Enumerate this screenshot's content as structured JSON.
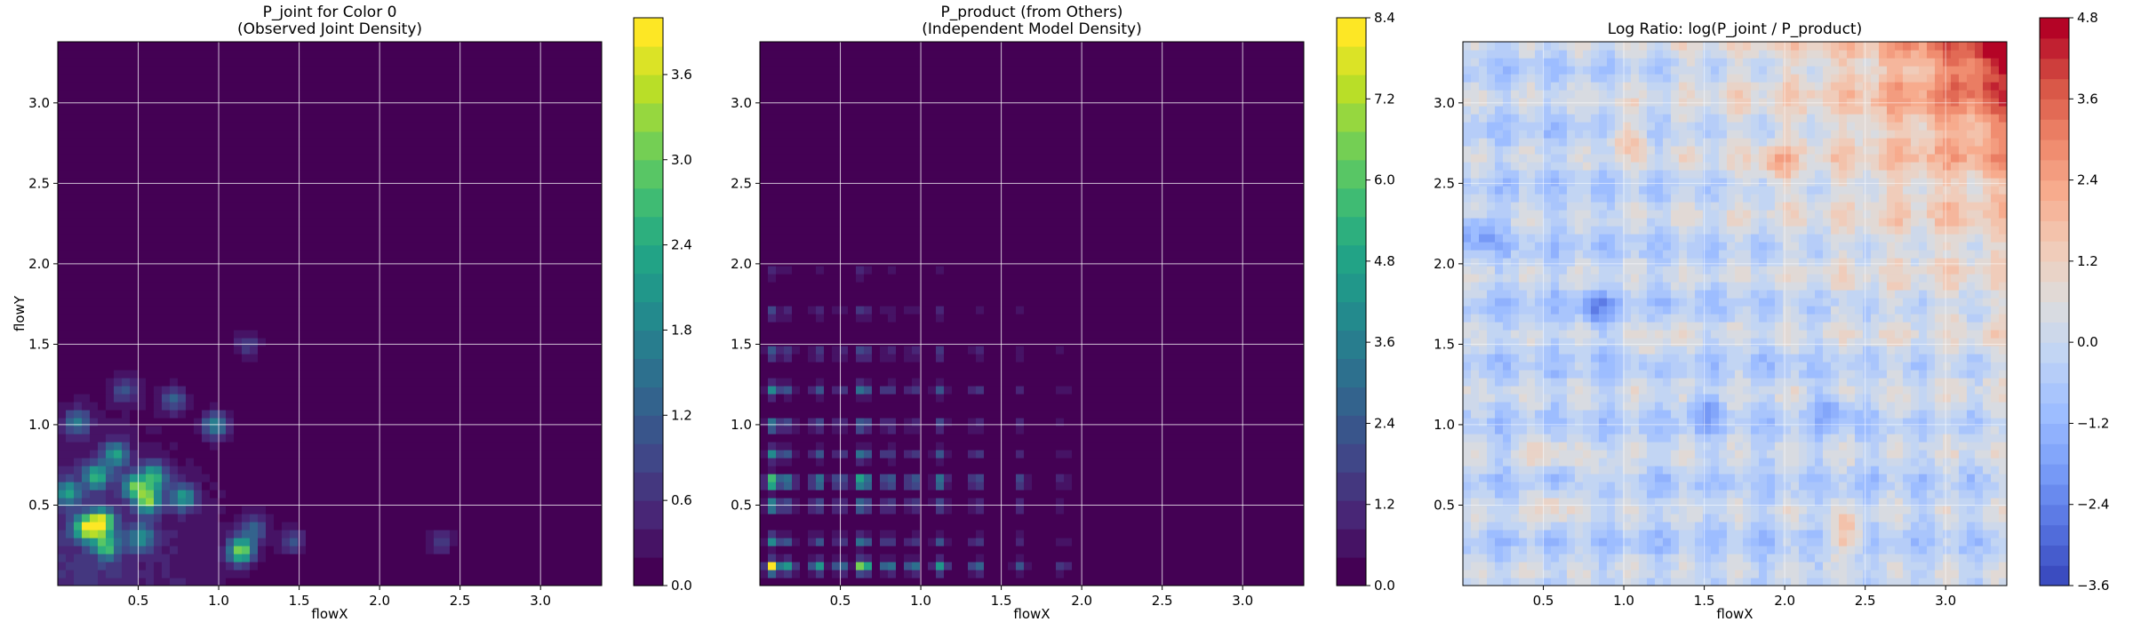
{
  "figure": {
    "colors": {
      "viridis": [
        "#440154",
        "#482475",
        "#414487",
        "#355f8d",
        "#2a788e",
        "#21918c",
        "#22a884",
        "#44bf70",
        "#7ad151",
        "#bddf26",
        "#fde725"
      ],
      "coolwarm": [
        "#3b4cc0",
        "#5977e3",
        "#7b9ff9",
        "#9ebeff",
        "#c0d4f5",
        "#dddcdc",
        "#f2cbb7",
        "#f7ac8e",
        "#ee8468",
        "#d65244",
        "#b40426"
      ],
      "grid": "#ffffff"
    }
  },
  "chart_data": [
    {
      "type": "heatmap",
      "title": [
        "P_joint for Color 0",
        "(Observed Joint Density)"
      ],
      "xlabel": "flowX",
      "ylabel": "flowY",
      "xlim": [
        0.0,
        3.38
      ],
      "ylim": [
        0.0,
        3.38
      ],
      "xticks": [
        "0.5",
        "1.0",
        "1.5",
        "2.0",
        "2.5",
        "3.0"
      ],
      "yticks": [
        "0.5",
        "1.0",
        "1.5",
        "2.0",
        "2.5",
        "3.0"
      ],
      "grid": true,
      "colormap": "viridis",
      "colorbar": {
        "min": 0.0,
        "max": 4.0,
        "levels": 20,
        "ticks": [
          "0.0",
          "0.6",
          "1.2",
          "1.8",
          "2.4",
          "3.0",
          "3.6"
        ],
        "tick_values": [
          0.0,
          0.6,
          1.2,
          1.8,
          2.4,
          3.0,
          3.6
        ]
      },
      "hotspots": [
        {
          "x": 0.06,
          "y": 0.58,
          "value": 2.0
        },
        {
          "x": 0.18,
          "y": 0.36,
          "value": 3.4
        },
        {
          "x": 0.28,
          "y": 0.4,
          "value": 3.0
        },
        {
          "x": 0.3,
          "y": 0.25,
          "value": 2.4
        },
        {
          "x": 0.24,
          "y": 0.68,
          "value": 2.2
        },
        {
          "x": 0.36,
          "y": 0.82,
          "value": 2.0
        },
        {
          "x": 0.48,
          "y": 0.62,
          "value": 2.4
        },
        {
          "x": 0.56,
          "y": 0.53,
          "value": 2.8
        },
        {
          "x": 0.6,
          "y": 0.68,
          "value": 2.4
        },
        {
          "x": 0.78,
          "y": 0.55,
          "value": 2.0
        },
        {
          "x": 0.52,
          "y": 0.3,
          "value": 1.8
        },
        {
          "x": 0.98,
          "y": 1.0,
          "value": 1.8
        },
        {
          "x": 1.14,
          "y": 0.22,
          "value": 3.2
        },
        {
          "x": 0.72,
          "y": 1.16,
          "value": 1.2
        },
        {
          "x": 1.22,
          "y": 0.36,
          "value": 1.2
        },
        {
          "x": 1.46,
          "y": 0.28,
          "value": 1.0
        },
        {
          "x": 1.18,
          "y": 1.5,
          "value": 0.8
        },
        {
          "x": 2.38,
          "y": 0.28,
          "value": 0.8
        },
        {
          "x": 0.12,
          "y": 1.02,
          "value": 1.4
        },
        {
          "x": 0.42,
          "y": 1.22,
          "value": 1.0
        }
      ]
    },
    {
      "type": "heatmap",
      "title": [
        "P_product (from Others)",
        "(Independent Model Density)"
      ],
      "xlabel": "flowX",
      "ylabel": "",
      "xlim": [
        0.0,
        3.38
      ],
      "ylim": [
        0.0,
        3.38
      ],
      "xticks": [
        "0.5",
        "1.0",
        "1.5",
        "2.0",
        "2.5",
        "3.0"
      ],
      "yticks": [
        "0.5",
        "1.0",
        "1.5",
        "2.0",
        "2.5",
        "3.0"
      ],
      "grid": true,
      "colormap": "viridis",
      "colorbar": {
        "min": 0.0,
        "max": 8.4,
        "levels": 20,
        "ticks": [
          "0.0",
          "1.2",
          "2.4",
          "3.6",
          "4.8",
          "6.0",
          "7.2",
          "8.4"
        ],
        "tick_values": [
          0.0,
          1.2,
          2.4,
          3.6,
          4.8,
          6.0,
          7.2,
          8.4
        ]
      },
      "x_marginal_peaks": [
        {
          "x": 0.08,
          "weight": 1.0
        },
        {
          "x": 0.18,
          "weight": 0.55
        },
        {
          "x": 0.36,
          "weight": 0.6
        },
        {
          "x": 0.5,
          "weight": 0.45
        },
        {
          "x": 0.64,
          "weight": 0.95
        },
        {
          "x": 0.8,
          "weight": 0.5
        },
        {
          "x": 0.95,
          "weight": 0.45
        },
        {
          "x": 1.12,
          "weight": 0.55
        },
        {
          "x": 1.35,
          "weight": 0.4
        },
        {
          "x": 1.62,
          "weight": 0.3
        },
        {
          "x": 1.88,
          "weight": 0.2
        }
      ],
      "y_marginal_peaks": [
        {
          "y": 0.12,
          "weight": 1.0
        },
        {
          "y": 0.28,
          "weight": 0.5
        },
        {
          "y": 0.5,
          "weight": 0.55
        },
        {
          "y": 0.65,
          "weight": 0.9
        },
        {
          "y": 0.82,
          "weight": 0.5
        },
        {
          "y": 1.0,
          "weight": 0.45
        },
        {
          "y": 1.22,
          "weight": 0.5
        },
        {
          "y": 1.45,
          "weight": 0.35
        },
        {
          "y": 1.7,
          "weight": 0.25
        },
        {
          "y": 1.95,
          "weight": 0.15
        }
      ],
      "peak_value": 8.4
    },
    {
      "type": "heatmap",
      "title": [
        "Log Ratio: log(P_joint / P_product)"
      ],
      "xlabel": "flowX",
      "ylabel": "",
      "xlim": [
        0.0,
        3.38
      ],
      "ylim": [
        0.0,
        3.38
      ],
      "xticks": [
        "0.5",
        "1.0",
        "1.5",
        "2.0",
        "2.5",
        "3.0"
      ],
      "yticks": [
        "0.5",
        "1.0",
        "1.5",
        "2.0",
        "2.5",
        "3.0"
      ],
      "grid": true,
      "colormap": "coolwarm",
      "colorbar": {
        "min": -3.6,
        "max": 4.8,
        "levels": 28,
        "ticks": [
          "−3.6",
          "−2.4",
          "−1.2",
          "0.0",
          "1.2",
          "2.4",
          "3.6",
          "4.8"
        ],
        "tick_values": [
          -3.6,
          -2.4,
          -1.2,
          0.0,
          1.2,
          2.4,
          3.6,
          4.8
        ]
      },
      "trend": {
        "corner": [
          3.38,
          3.38
        ],
        "corner_value": 4.6,
        "center_value": -0.3
      },
      "features": [
        {
          "x": 1.02,
          "y": 2.78,
          "value": 1.6
        },
        {
          "x": 1.95,
          "y": 2.62,
          "value": 1.4
        },
        {
          "x": 2.38,
          "y": 0.32,
          "value": 1.8
        },
        {
          "x": 0.55,
          "y": 0.5,
          "value": 1.4
        },
        {
          "x": 1.2,
          "y": 1.5,
          "value": 1.0
        },
        {
          "x": 0.52,
          "y": 0.85,
          "value": 1.2
        },
        {
          "x": 0.88,
          "y": 0.7,
          "value": 1.0
        },
        {
          "x": 0.1,
          "y": 2.2,
          "value": -1.6
        },
        {
          "x": 0.82,
          "y": 1.72,
          "value": -1.6
        },
        {
          "x": 2.3,
          "y": 1.12,
          "value": -1.2
        },
        {
          "x": 1.5,
          "y": 1.1,
          "value": -1.2
        }
      ]
    }
  ]
}
